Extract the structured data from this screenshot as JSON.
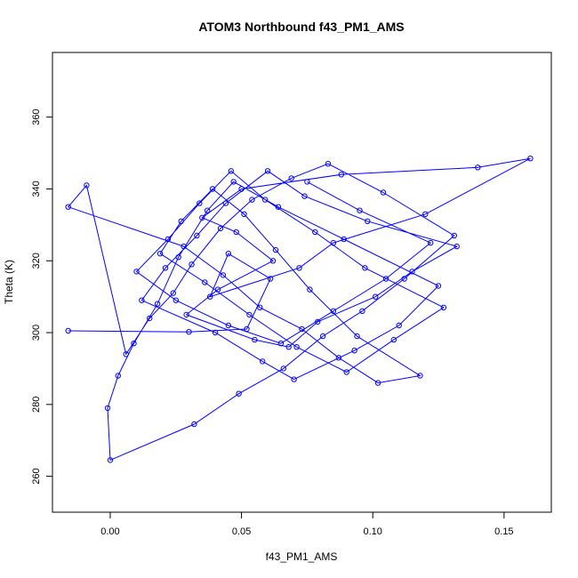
{
  "chart_data": {
    "type": "line",
    "title": "ATOM3 Northbound f43_PM1_AMS",
    "xlabel": "f43_PM1_AMS",
    "ylabel": "Theta (K)",
    "xlim": [
      -0.022,
      0.168
    ],
    "ylim": [
      250,
      378
    ],
    "x_ticks": [
      0.0,
      0.05,
      0.1,
      0.15
    ],
    "x_tick_labels": [
      "0.00",
      "0.05",
      "0.10",
      "0.15"
    ],
    "y_ticks": [
      260,
      280,
      300,
      320,
      340,
      360
    ],
    "y_tick_labels": [
      "260",
      "280",
      "300",
      "320",
      "340",
      "360"
    ],
    "grid": false,
    "color": "#0000ff",
    "marker": "open-circle",
    "series": [
      {
        "x": [
          -0.016,
          0.03,
          0.052,
          0.061,
          0.045,
          0.038,
          0.072,
          0.085,
          0.12,
          0.16,
          0.14,
          0.088,
          0.05,
          0.035,
          0.048,
          0.062,
          0.041,
          0.029,
          0.055,
          0.068,
          0.079,
          0.101,
          0.115,
          0.132,
          0.098,
          0.074,
          0.06,
          0.044,
          0.033,
          0.021,
          0.012,
          0.04,
          0.058,
          0.07,
          0.093,
          0.11,
          0.125,
          0.089,
          0.064,
          0.047,
          0.037,
          0.026,
          0.018,
          0.009,
          0.003,
          -0.001,
          0.0,
          0.032,
          0.049,
          0.066,
          0.081,
          0.096,
          0.112,
          0.131,
          0.104,
          0.083,
          0.069,
          0.054,
          0.042,
          0.031,
          0.024,
          0.015,
          0.006,
          -0.009,
          -0.016,
          0.028,
          0.043,
          0.057,
          0.073,
          0.087,
          0.102,
          0.118,
          0.094,
          0.076,
          0.063,
          0.051,
          0.039,
          0.027,
          0.019,
          0.036,
          0.053,
          0.071,
          0.09,
          0.108,
          0.127,
          0.097,
          0.078,
          0.059,
          0.046,
          0.034,
          0.022,
          0.01,
          0.025,
          0.045,
          0.065,
          0.085,
          0.105,
          0.122,
          0.095,
          0.075
        ],
        "y": [
          300.5,
          300.2,
          301.0,
          315.0,
          322.0,
          310.0,
          318.0,
          325.0,
          333.0,
          348.5,
          346.0,
          344.0,
          340.0,
          332.0,
          328.0,
          320.0,
          312.0,
          305.0,
          298.0,
          296.0,
          303.0,
          310.0,
          317.0,
          324.0,
          331.0,
          338.0,
          345.0,
          336.0,
          327.0,
          318.0,
          309.0,
          300.0,
          292.0,
          287.0,
          295.0,
          302.0,
          313.0,
          326.0,
          335.0,
          342.0,
          334.0,
          321.0,
          308.0,
          297.0,
          288.0,
          279.0,
          264.5,
          274.5,
          283.0,
          290.0,
          299.0,
          306.0,
          315.0,
          327.0,
          339.0,
          347.0,
          343.0,
          337.0,
          329.0,
          319.0,
          311.0,
          304.0,
          294.0,
          341.0,
          335.0,
          324.0,
          316.0,
          307.0,
          301.0,
          293.0,
          286.0,
          288.0,
          299.0,
          312.0,
          323.0,
          333.0,
          340.0,
          331.0,
          322.0,
          314.0,
          305.0,
          296.0,
          289.0,
          298.0,
          307.0,
          318.0,
          328.0,
          337.0,
          345.0,
          336.0,
          326.0,
          317.0,
          309.0,
          302.0,
          297.0,
          306.0,
          315.0,
          325.0,
          334.0,
          342.0
        ]
      }
    ]
  }
}
